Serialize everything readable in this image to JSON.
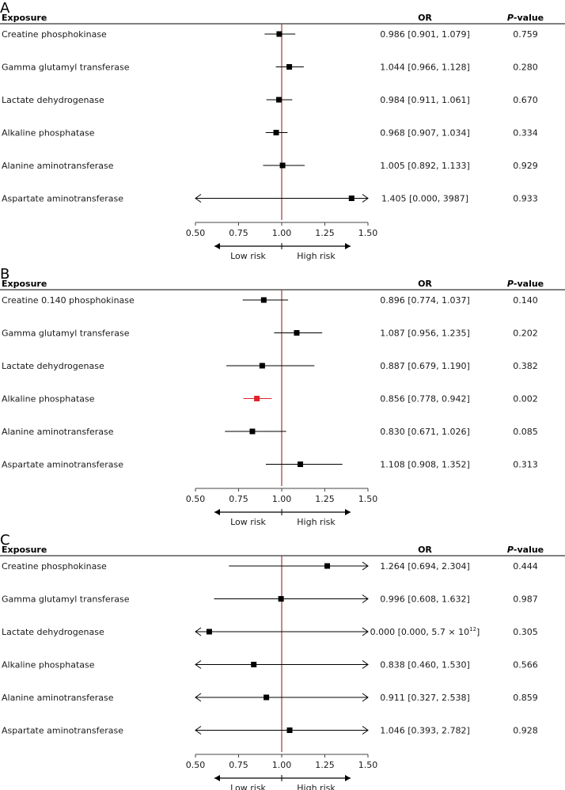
{
  "chart_data": [
    {
      "type": "forest",
      "panel_label": "A",
      "headers": {
        "exposure": "Exposure",
        "or": "OR",
        "p_prefix": "P",
        "p_suffix": "-value"
      },
      "xlim": [
        0.5,
        1.5
      ],
      "ticks": [
        "0.50",
        "0.75",
        "1.00",
        "1.25",
        "1.50"
      ],
      "reference_line": 1.0,
      "direction_labels": {
        "left": "Low risk",
        "right": "High risk"
      },
      "rows": [
        {
          "exposure": "Creatine phosphokinase",
          "or": 0.986,
          "low": 0.901,
          "high": 1.079,
          "or_text": "0.986 [0.901, 1.079]",
          "p": "0.759",
          "highlight": false
        },
        {
          "exposure": "Gamma glutamyl transferase",
          "or": 1.044,
          "low": 0.966,
          "high": 1.128,
          "or_text": "1.044 [0.966, 1.128]",
          "p": "0.280",
          "highlight": false
        },
        {
          "exposure": "Lactate dehydrogenase",
          "or": 0.984,
          "low": 0.911,
          "high": 1.061,
          "or_text": "0.984 [0.911, 1.061]",
          "p": "0.670",
          "highlight": false
        },
        {
          "exposure": "Alkaline phosphatase",
          "or": 0.968,
          "low": 0.907,
          "high": 1.034,
          "or_text": "0.968 [0.907, 1.034]",
          "p": "0.334",
          "highlight": false
        },
        {
          "exposure": "Alanine aminotransferase",
          "or": 1.005,
          "low": 0.892,
          "high": 1.133,
          "or_text": "1.005 [0.892, 1.133]",
          "p": "0.929",
          "highlight": false
        },
        {
          "exposure": "Aspartate aminotransferase",
          "or": 1.405,
          "low": 0.0,
          "high": 3987,
          "or_text": "1.405 [0.000, 3987]",
          "p": "0.933",
          "highlight": false
        }
      ]
    },
    {
      "type": "forest",
      "panel_label": "B",
      "headers": {
        "exposure": "Exposure",
        "or": "OR",
        "p_prefix": "P",
        "p_suffix": "-value"
      },
      "xlim": [
        0.5,
        1.5
      ],
      "ticks": [
        "0.50",
        "0.75",
        "1.00",
        "1.25",
        "1.50"
      ],
      "reference_line": 1.0,
      "direction_labels": {
        "left": "Low risk",
        "right": "High risk"
      },
      "rows": [
        {
          "exposure": "Creatine 0.140 phosphokinase",
          "or": 0.896,
          "low": 0.774,
          "high": 1.037,
          "or_text": "0.896 [0.774, 1.037]",
          "p": "0.140",
          "highlight": false
        },
        {
          "exposure": "Gamma glutamyl transferase",
          "or": 1.087,
          "low": 0.956,
          "high": 1.235,
          "or_text": "1.087 [0.956, 1.235]",
          "p": "0.202",
          "highlight": false
        },
        {
          "exposure": "Lactate dehydrogenase",
          "or": 0.887,
          "low": 0.679,
          "high": 1.19,
          "or_text": "0.887 [0.679, 1.190]",
          "p": "0.382",
          "highlight": false
        },
        {
          "exposure": "Alkaline phosphatase",
          "or": 0.856,
          "low": 0.778,
          "high": 0.942,
          "or_text": "0.856 [0.778, 0.942]",
          "p": "0.002",
          "highlight": true
        },
        {
          "exposure": "Alanine aminotransferase",
          "or": 0.83,
          "low": 0.671,
          "high": 1.026,
          "or_text": "0.830 [0.671, 1.026]",
          "p": "0.085",
          "highlight": false
        },
        {
          "exposure": "Aspartate aminotransferase",
          "or": 1.108,
          "low": 0.908,
          "high": 1.352,
          "or_text": "1.108 [0.908, 1.352]",
          "p": "0.313",
          "highlight": false
        }
      ]
    },
    {
      "type": "forest",
      "panel_label": "C",
      "headers": {
        "exposure": "Exposure",
        "or": "OR",
        "p_prefix": "P",
        "p_suffix": "-value"
      },
      "xlim": [
        0.5,
        1.5
      ],
      "ticks": [
        "0.50",
        "0.75",
        "1.00",
        "1.25",
        "1.50"
      ],
      "reference_line": 1.0,
      "direction_labels": {
        "left": "Low risk",
        "right": "High risk"
      },
      "rows": [
        {
          "exposure": "Creatine phosphokinase",
          "or": 1.264,
          "low": 0.694,
          "high": 2.304,
          "or_text": "1.264 [0.694, 2.304]",
          "p": "0.444",
          "highlight": false
        },
        {
          "exposure": "Gamma glutamyl transferase",
          "or": 0.996,
          "low": 0.608,
          "high": 1.632,
          "or_text": "0.996 [0.608, 1.632]",
          "p": "0.987",
          "highlight": false
        },
        {
          "exposure": "Lactate dehydrogenase",
          "or": 0.0,
          "plot_point": 0.58,
          "low": 0.0,
          "high": 5700000000000.0,
          "or_text": "0.000 [0.000, 5.7 × 10",
          "or_sup": "12",
          "or_text_end": "]",
          "p": "0.305",
          "highlight": false
        },
        {
          "exposure": "Alkaline phosphatase",
          "or": 0.838,
          "low": 0.46,
          "high": 1.53,
          "or_text": "0.838 [0.460, 1.530]",
          "p": "0.566",
          "highlight": false
        },
        {
          "exposure": "Alanine aminotransferase",
          "or": 0.911,
          "low": 0.327,
          "high": 2.538,
          "or_text": "0.911 [0.327, 2.538]",
          "p": "0.859",
          "highlight": false
        },
        {
          "exposure": "Aspartate aminotransferase",
          "or": 1.046,
          "low": 0.393,
          "high": 2.782,
          "or_text": "1.046 [0.393, 2.782]",
          "p": "0.928",
          "highlight": false
        }
      ]
    }
  ],
  "colors": {
    "reference_line": "#a33a3a",
    "point": "#000000",
    "highlight": "#e0222a",
    "axis": "#444444",
    "text": "#1a1a1a",
    "header_rule": "#000000"
  }
}
